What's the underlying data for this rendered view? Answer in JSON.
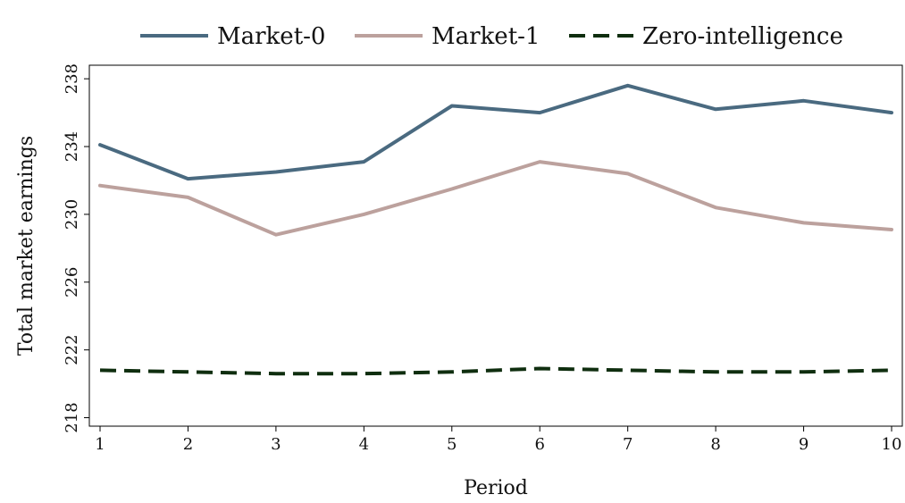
{
  "chart_data": {
    "type": "line",
    "title": "",
    "xlabel": "Period",
    "ylabel": "Total market earnings",
    "x": [
      1,
      2,
      3,
      4,
      5,
      6,
      7,
      8,
      9,
      10
    ],
    "xlim": [
      1,
      10
    ],
    "ylim": [
      217.5,
      238.8
    ],
    "yticks": [
      218,
      222,
      226,
      230,
      234,
      238
    ],
    "grid": false,
    "legend_position": "top",
    "series": [
      {
        "name": "Market-0",
        "color": "#4a6a80",
        "style": "solid",
        "values": [
          234.1,
          232.1,
          232.5,
          233.1,
          236.4,
          236.0,
          237.6,
          236.2,
          236.7,
          236.0
        ]
      },
      {
        "name": "Market-1",
        "color": "#bca19d",
        "style": "solid",
        "values": [
          231.7,
          231.0,
          228.8,
          230.0,
          231.5,
          233.1,
          232.4,
          230.4,
          229.5,
          229.1
        ]
      },
      {
        "name": "Zero-intelligence",
        "color": "#0f2e0f",
        "style": "dashed",
        "values": [
          220.8,
          220.7,
          220.6,
          220.6,
          220.7,
          220.9,
          220.8,
          220.7,
          220.7,
          220.8
        ]
      }
    ]
  }
}
